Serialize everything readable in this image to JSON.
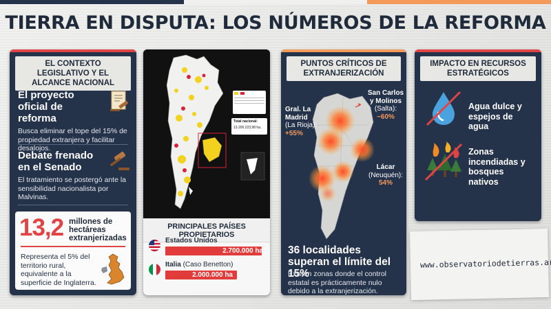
{
  "title": "TIERRA EN DISPUTA: LOS NÚMEROS DE LA REFORMA",
  "colors": {
    "navy": "#24324a",
    "red": "#e04444",
    "orange": "#f39a5b",
    "accent_bar": [
      "#24324a",
      "#f0f0f0",
      "#f39a5b"
    ]
  },
  "legislative": {
    "heading": "EL CONTEXTO LEGISLATIVO Y EL ALCANCE NACIONAL",
    "items": [
      {
        "title": "El proyecto oficial de reforma",
        "text": "Busca eliminar el tope del 15% de propiedad extranjera y facilitar desalojos.",
        "icon": "document-gavel-icon"
      },
      {
        "title": "Debate frenado en el Senado",
        "text": "El tratamiento se postergó ante la sensibilidad nacionalista por Malvinas.",
        "icon": "gavel-icon"
      }
    ],
    "stat": {
      "number": "13,2",
      "label": "millones de hectáreas extranjerizadas",
      "text": "Representa el 5% del territorio rural, equivalente a la superficie de Inglaterra.",
      "icon": "uk-map-icon"
    }
  },
  "map_panel": {
    "total_label": "Total nacional:",
    "total_value": "13.200.223,98 ha.",
    "owners_heading": "PRINCIPALES PAÍSES PROPIETARIOS",
    "owners": [
      {
        "country": "Estados Unidos",
        "detail": "",
        "value": "2.700.000 ha",
        "hectares": 2700000,
        "flag": "usa-flag-icon"
      },
      {
        "country": "Italia",
        "detail": " (Caso Benetton)",
        "value": "2.000.000 ha",
        "hectares": 2000000,
        "flag": "italy-flag-icon"
      }
    ]
  },
  "critical": {
    "heading": "PUNTOS CRÍTICOS DE EXTRANJERIZACIÓN",
    "points": [
      {
        "name": "Gral. La Madrid",
        "region": "(La Rioja):",
        "pct": "+55%"
      },
      {
        "name": "San Carlos y Molinos",
        "region": "(Salta):",
        "pct": "~60%"
      },
      {
        "name": "Lácar",
        "region": "(Neuquén):",
        "pct": "54%"
      }
    ],
    "title": "36 localidades superan el límite del 15%",
    "text": "Existen zonas donde el control estatal es prácticamente nulo debido a la extranjerización."
  },
  "impact": {
    "heading": "IMPACTO EN RECURSOS ESTRATÉGICOS",
    "items": [
      {
        "label": "Agua dulce y espejos de agua",
        "icon": "water-drop-icon"
      },
      {
        "label": "Zonas incendiadas y bosques nativos",
        "icon": "burning-forest-icon"
      }
    ]
  },
  "footer_url": "www.observatoriodetierras.ar/"
}
